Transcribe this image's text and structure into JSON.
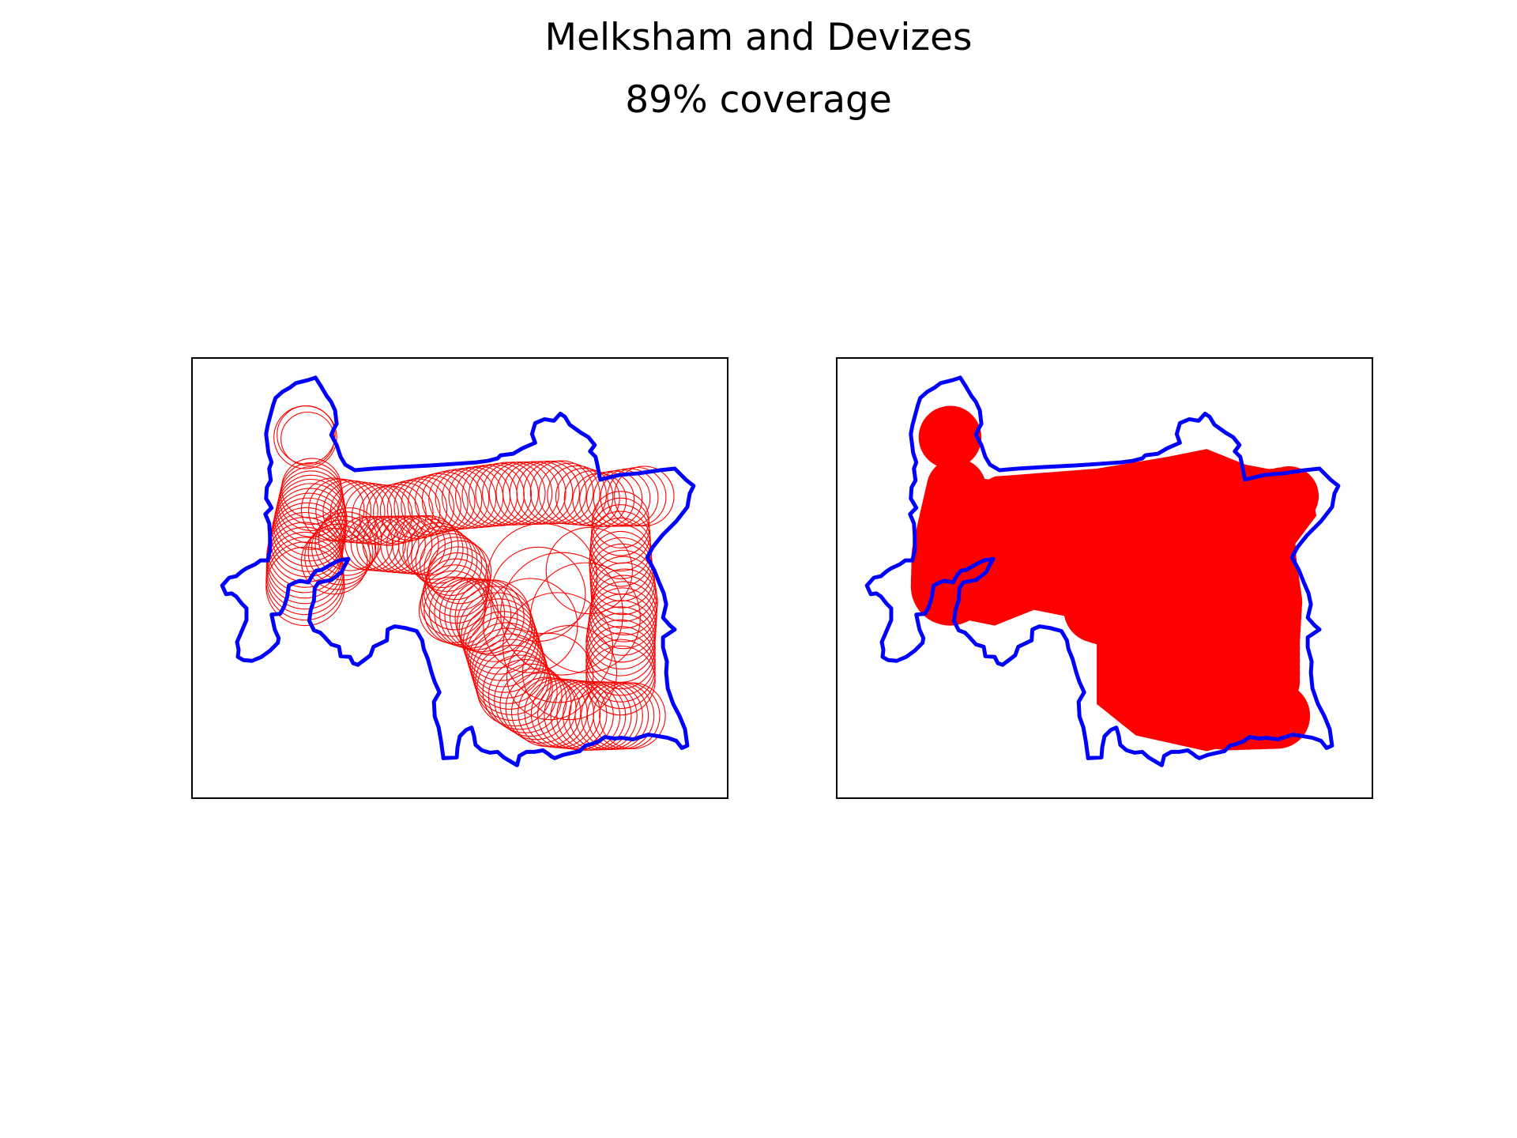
{
  "title": "Melksham and Devizes",
  "subtitle": "89% coverage",
  "colors": {
    "boundary": "#0000ff",
    "coverage": "#ff0000",
    "frame": "#000000",
    "background": "#ffffff"
  },
  "panels": [
    {
      "name": "left-map",
      "style": "outlined-circles"
    },
    {
      "name": "right-map",
      "style": "filled-union"
    }
  ]
}
